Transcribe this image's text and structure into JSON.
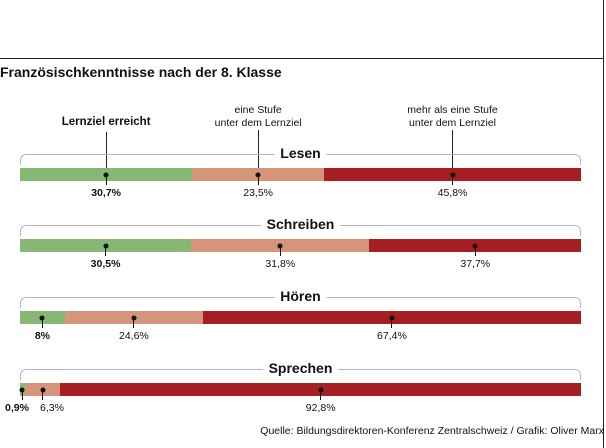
{
  "chart_data": {
    "type": "bar",
    "stacked": true,
    "orientation": "horizontal",
    "normalized": true,
    "title": "Französischkenntnisse nach der 8. Klasse",
    "source": "Quelle: Bildungsdirektoren-Konferenz Zentralschweiz / Grafik: Oliver Marx",
    "categories": [
      "Lesen",
      "Schreiben",
      "Hören",
      "Sprechen"
    ],
    "series": [
      {
        "name": "Lernziel erreicht",
        "color": "#86b874",
        "values": [
          30.7,
          30.5,
          8,
          0.9
        ],
        "labels": [
          "30,7%",
          "30,5%",
          "8%",
          "0,9%"
        ]
      },
      {
        "name": "eine Stufe unter dem Lernziel",
        "color": "#d6957a",
        "values": [
          23.5,
          31.8,
          24.6,
          6.3
        ],
        "labels": [
          "23,5%",
          "31,8%",
          "24,6%",
          "6,3%"
        ]
      },
      {
        "name": "mehr als eine Stufe unter dem Lernziel",
        "color": "#a71e22",
        "values": [
          45.8,
          37.7,
          67.4,
          92.8
        ],
        "labels": [
          "45,8%",
          "37,7%",
          "67,4%",
          "92,8%"
        ]
      }
    ],
    "legend": {
      "position": "top",
      "items": [
        {
          "lines": [
            "Lernziel erreicht"
          ]
        },
        {
          "lines": [
            "eine Stufe",
            "unter dem Lernziel"
          ]
        },
        {
          "lines": [
            "mehr als eine Stufe",
            "unter dem Lernziel"
          ]
        }
      ]
    },
    "units": "%"
  }
}
